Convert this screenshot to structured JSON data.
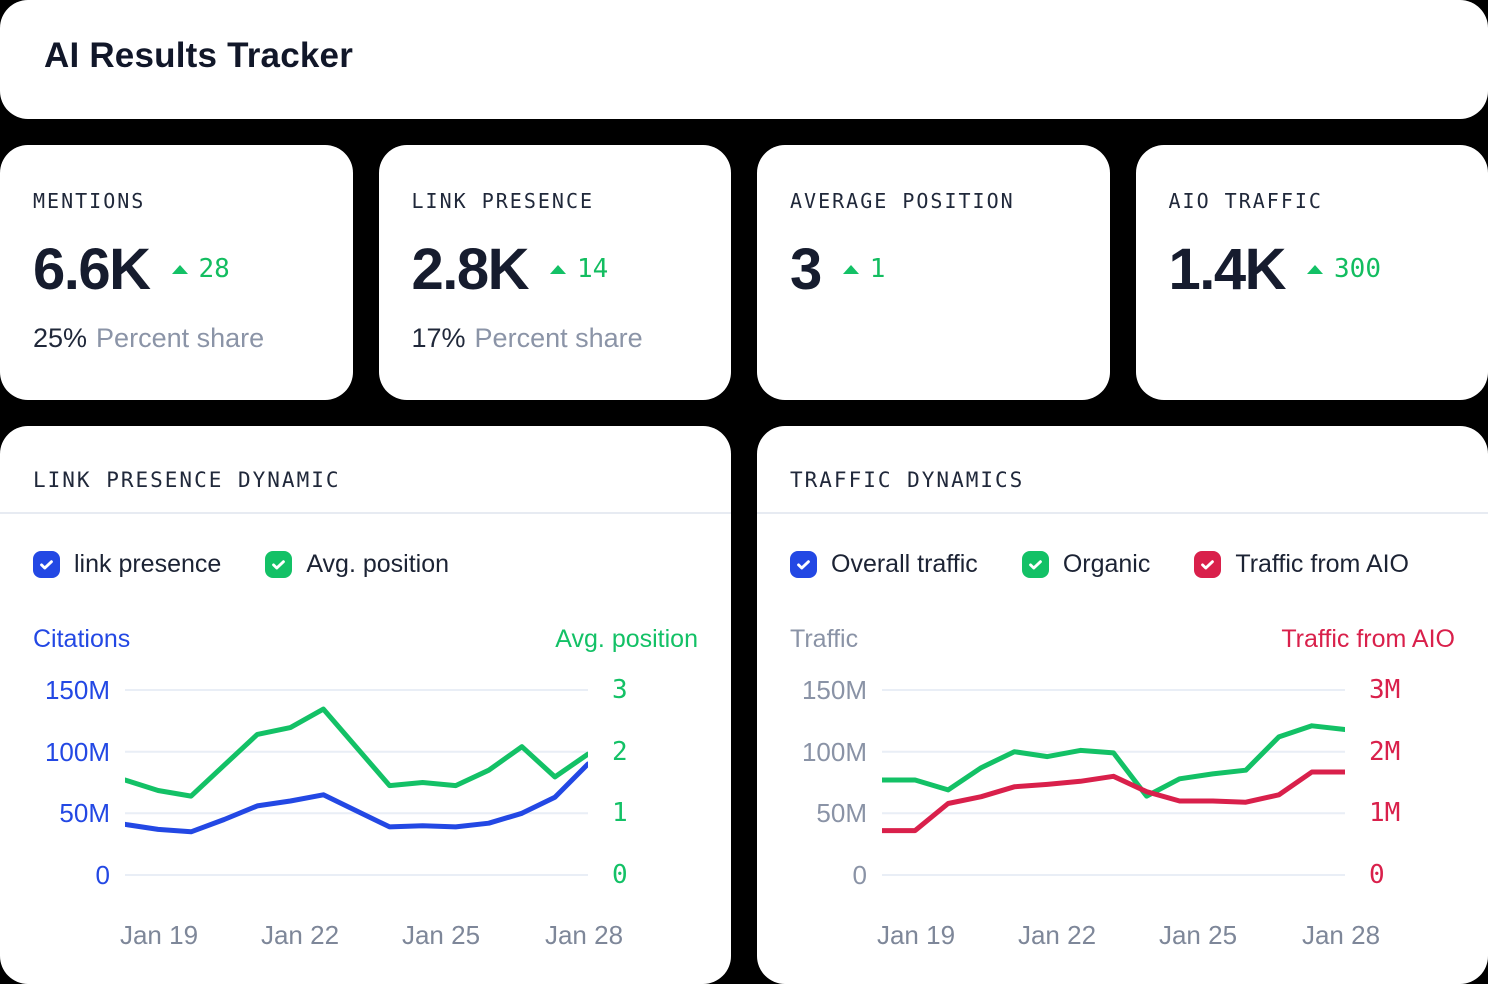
{
  "colors": {
    "blue": "#2348e4",
    "green": "#13c166",
    "red": "#d9204b",
    "dark": "#1c2334",
    "grayAxis": "#8a93a6",
    "tick": "#7e8799",
    "grid": "#e9eef6",
    "deltaGreen": "#13bd60"
  },
  "header": {
    "title": "AI Results Tracker"
  },
  "kpis": [
    {
      "label": "MENTIONS",
      "value": "6.6K",
      "delta": "28",
      "share_value": "25%",
      "share_label": "Percent share"
    },
    {
      "label": "LINK PRESENCE",
      "value": "2.8K",
      "delta": "14",
      "share_value": "17%",
      "share_label": "Percent share"
    },
    {
      "label": "AVERAGE POSITION",
      "value": "3",
      "delta": "1"
    },
    {
      "label": "AIO TRAFFIC",
      "value": "1.4K",
      "delta": "300"
    }
  ],
  "chart_data": [
    {
      "type": "line",
      "title": "LINK PRESENCE DYNAMIC",
      "legend": [
        {
          "label": "link presence",
          "color": "blue",
          "checked": true
        },
        {
          "label": "Avg. position",
          "color": "green",
          "checked": true
        }
      ],
      "left_axis": {
        "label": "Citations",
        "color": "blue",
        "ticks": [
          "150M",
          "100M",
          "50M",
          "0"
        ],
        "range": [
          0,
          150
        ],
        "unit": "M"
      },
      "right_axis": {
        "label": "Avg. position",
        "color": "green",
        "ticks": [
          "3",
          "2",
          "1",
          "0"
        ],
        "range": [
          0,
          3
        ]
      },
      "x_ticks": [
        "Jan 19",
        "Jan 22",
        "Jan 25",
        "Jan 28"
      ],
      "grid": true,
      "series": [
        {
          "name": "link presence",
          "axis": "left",
          "color": "blue",
          "max": 150,
          "values": [
            41,
            37,
            35,
            45,
            56,
            60,
            65,
            52,
            39,
            40,
            39,
            42,
            50,
            63,
            90
          ]
        },
        {
          "name": "Avg. position",
          "axis": "right",
          "color": "green",
          "max": 3,
          "values": [
            1.54,
            1.37,
            1.28,
            1.78,
            2.28,
            2.39,
            2.69,
            2.07,
            1.45,
            1.5,
            1.45,
            1.7,
            2.08,
            1.59,
            1.96
          ]
        }
      ]
    },
    {
      "type": "line",
      "title": "TRAFFIC DYNAMICS",
      "legend": [
        {
          "label": "Overall traffic",
          "color": "blue",
          "checked": true
        },
        {
          "label": "Organic",
          "color": "green",
          "checked": true
        },
        {
          "label": "Traffic from AIO",
          "color": "red",
          "checked": true
        }
      ],
      "left_axis": {
        "label": "Traffic",
        "color": "grayAxis",
        "ticks": [
          "150M",
          "100M",
          "50M",
          "0"
        ],
        "range": [
          0,
          150
        ],
        "unit": "M"
      },
      "right_axis": {
        "label": "Traffic from AIO",
        "color": "red",
        "ticks": [
          "3M",
          "2M",
          "1M",
          "0"
        ],
        "range": [
          0,
          3
        ],
        "unit": "M"
      },
      "x_ticks": [
        "Jan 19",
        "Jan 22",
        "Jan 25",
        "Jan 28"
      ],
      "grid": true,
      "series": [
        {
          "name": "Organic",
          "axis": "left",
          "color": "green",
          "max": 150,
          "values": [
            77,
            77,
            69,
            87,
            100,
            96,
            101,
            99,
            64,
            78,
            82,
            85,
            112,
            121,
            118
          ]
        },
        {
          "name": "Traffic from AIO",
          "axis": "right",
          "color": "red",
          "max": 3,
          "values": [
            0.72,
            0.72,
            1.16,
            1.27,
            1.43,
            1.47,
            1.52,
            1.6,
            1.35,
            1.2,
            1.2,
            1.18,
            1.3,
            1.67,
            1.67
          ]
        }
      ]
    }
  ]
}
